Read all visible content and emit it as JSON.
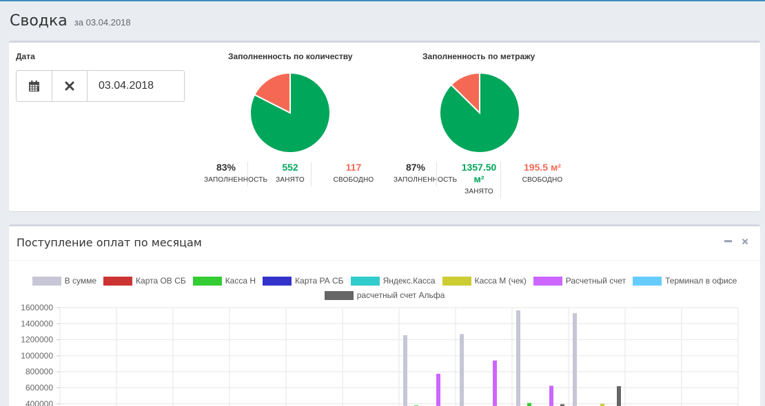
{
  "header": {
    "title": "Сводка",
    "subtitle": "за 03.04.2018"
  },
  "filters": {
    "date_label": "Дата",
    "date_value": "03.04.2018",
    "calendar_icon": "calendar-icon",
    "clear_icon": "close-icon"
  },
  "occupancy_count": {
    "title": "Заполненность по количеству",
    "pie": {
      "occupied_pct": 82.5,
      "occupied_color": "#00a65a",
      "free_color": "#f56954"
    },
    "stats": [
      {
        "value": "83%",
        "label": "ЗАПОЛНЕННОСТЬ",
        "color": "#333333"
      },
      {
        "value": "552",
        "label": "ЗАНЯТО",
        "color": "#00a65a"
      },
      {
        "value": "117",
        "label": "СВОБОДНО",
        "color": "#f56954"
      }
    ]
  },
  "occupancy_area": {
    "title": "Заполненность по метражу",
    "pie": {
      "occupied_pct": 87.4,
      "occupied_color": "#00a65a",
      "free_color": "#f56954"
    },
    "stats": [
      {
        "value": "87%",
        "label": "ЗАПОЛНЕННОСТЬ",
        "color": "#333333"
      },
      {
        "value": "1357.50",
        "value2": "м²",
        "label": "ЗАНЯТО",
        "color": "#00a65a"
      },
      {
        "value": "195.5 м²",
        "label": "СВОБОДНО",
        "color": "#f56954"
      }
    ]
  },
  "payments": {
    "title": "Поступление оплат по месяцам",
    "collapse_icon": "minus-icon",
    "remove_icon": "close-icon"
  },
  "chart_data": {
    "type": "bar",
    "legend_position": "top",
    "grid": true,
    "ylim": [
      400000,
      1600000
    ],
    "yticks": [
      "1600000",
      "1400000",
      "1200000",
      "1000000",
      "800000",
      "600000",
      "400000"
    ],
    "series": [
      {
        "name": "В сумме",
        "color": "#c6c6d6",
        "values": [
          null,
          null,
          null,
          null,
          null,
          null,
          1255000,
          1270000,
          1565000,
          1530000,
          null,
          null
        ]
      },
      {
        "name": "Карта ОВ СБ",
        "color": "#cc3333",
        "values": [
          null,
          null,
          null,
          null,
          null,
          null,
          null,
          null,
          null,
          null,
          null,
          null
        ]
      },
      {
        "name": "Касса Н",
        "color": "#33cc33",
        "values": [
          null,
          null,
          null,
          null,
          null,
          null,
          380000,
          null,
          410000,
          null,
          null,
          null
        ]
      },
      {
        "name": "Карта РА СБ",
        "color": "#3333cc",
        "values": [
          null,
          null,
          null,
          null,
          null,
          null,
          null,
          null,
          null,
          null,
          null,
          null
        ]
      },
      {
        "name": "Яндекс.Касса",
        "color": "#33cccc",
        "values": [
          null,
          null,
          null,
          null,
          null,
          null,
          null,
          null,
          null,
          null,
          null,
          null
        ]
      },
      {
        "name": "Касса М (чек)",
        "color": "#cccc33",
        "values": [
          null,
          null,
          null,
          null,
          null,
          null,
          null,
          null,
          null,
          400000,
          null,
          null
        ]
      },
      {
        "name": "Расчетный счет",
        "color": "#cc66ff",
        "values": [
          null,
          null,
          null,
          null,
          null,
          null,
          775000,
          940000,
          625000,
          null,
          null,
          null
        ]
      },
      {
        "name": "Терминал в офисе",
        "color": "#66ccff",
        "values": [
          null,
          null,
          null,
          null,
          null,
          null,
          null,
          null,
          null,
          null,
          null,
          null
        ]
      },
      {
        "name": "расчетный счет Альфа",
        "color": "#666666",
        "values": [
          null,
          null,
          null,
          null,
          null,
          null,
          null,
          null,
          395000,
          620000,
          null,
          null
        ]
      }
    ]
  }
}
